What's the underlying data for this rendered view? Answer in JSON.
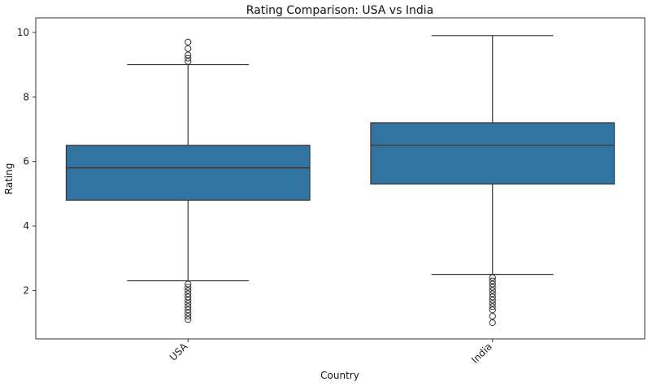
{
  "chart_data": {
    "type": "box",
    "title": "Rating Comparison: USA vs India",
    "xlabel": "Country",
    "ylabel": "Rating",
    "ylim": [
      0.5,
      10.45
    ],
    "yticks": [
      2,
      4,
      6,
      8,
      10
    ],
    "grid": false,
    "legend": "none",
    "box_color": "#3274a1",
    "line_color": "#333333",
    "categories": [
      "USA",
      "India"
    ],
    "boxes": [
      {
        "category": "USA",
        "whisker_low": 2.3,
        "q1": 4.8,
        "median": 5.8,
        "q3": 6.5,
        "whisker_high": 9.0,
        "outliers": [
          1.1,
          1.2,
          1.3,
          1.4,
          1.5,
          1.6,
          1.7,
          1.8,
          1.9,
          2.0,
          2.1,
          2.2,
          9.1,
          9.2,
          9.3,
          9.5,
          9.7
        ]
      },
      {
        "category": "India",
        "whisker_low": 2.5,
        "q1": 5.3,
        "median": 6.5,
        "q3": 7.2,
        "whisker_high": 9.9,
        "outliers": [
          1.0,
          1.2,
          1.4,
          1.5,
          1.6,
          1.7,
          1.8,
          1.9,
          2.0,
          2.1,
          2.2,
          2.3,
          2.4
        ]
      }
    ]
  }
}
